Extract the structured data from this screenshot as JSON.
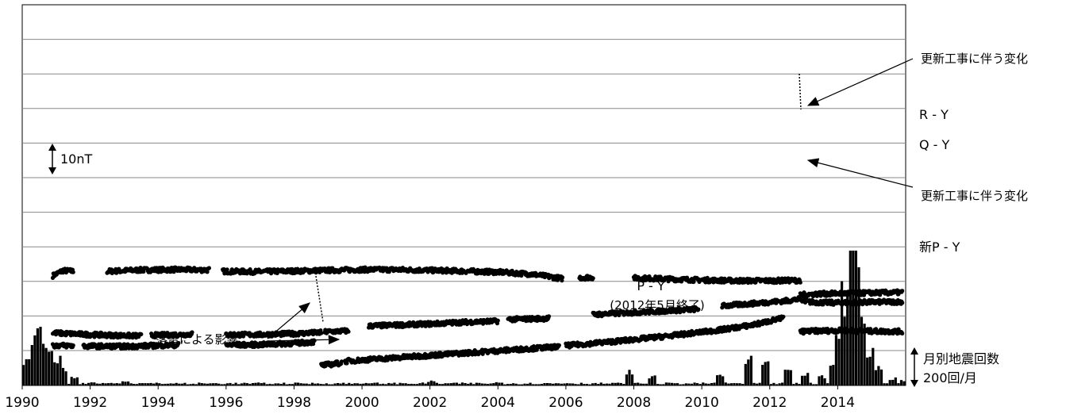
{
  "chart_data": {
    "type": "scatter",
    "x_tick_labels": [
      "1990",
      "1992",
      "1994",
      "1996",
      "1998",
      "2000",
      "2002",
      "2004",
      "2006",
      "2008",
      "2010",
      "2012",
      "2014"
    ],
    "xlim": [
      1990,
      2016
    ],
    "grid": true,
    "series": [
      {
        "name": "R - Y",
        "segments": [
          {
            "x": [
              1990.9,
              1991.2,
              1991.5
            ],
            "y": [
              63.5,
              66.5,
              66.0
            ]
          },
          {
            "x": [
              1992.5,
              1993.5,
              1994.5,
              1995.5
            ],
            "y": [
              66.0,
              66.8,
              67.0,
              66.8
            ]
          },
          {
            "x": [
              1995.9,
              1997.0,
              1998.5,
              2000.0,
              2001.0,
              2002.5,
              2004.0,
              2005.0,
              2005.9
            ],
            "y": [
              66.0,
              65.8,
              66.4,
              67.0,
              67.0,
              66.4,
              65.6,
              64.4,
              61.8
            ]
          },
          {
            "x": [
              2006.4,
              2006.8
            ],
            "y": [
              62.4,
              62.6
            ]
          },
          {
            "x": [
              2008.0,
              2009.0,
              2010.0,
              2011.0,
              2012.0,
              2012.9
            ],
            "y": [
              62.2,
              61.6,
              61.0,
              60.6,
              60.6,
              60.8
            ]
          },
          {
            "x": [
              2012.9,
              2013.5,
              2014.0,
              2014.5,
              2015.0,
              2015.9
            ],
            "y": [
              48.6,
              48.0,
              47.8,
              48.0,
              48.2,
              48.4
            ]
          }
        ]
      },
      {
        "name": "Q - Y",
        "segments": [
          {
            "x": [
              1990.9,
              1992.0,
              1993.5
            ],
            "y": [
              30.4,
              29.4,
              28.6
            ]
          },
          {
            "x": [
              1993.8,
              1995.0
            ],
            "y": [
              29.0,
              29.6
            ]
          },
          {
            "x": [
              1996.0,
              1997.0,
              1998.0,
              1998.8
            ],
            "y": [
              29.4,
              29.4,
              30.0,
              30.6
            ]
          },
          {
            "x": [
              1998.9,
              1999.6
            ],
            "y": [
              31.0,
              31.6
            ]
          },
          {
            "x": [
              2000.2,
              2002.0,
              2003.0,
              2004.0
            ],
            "y": [
              34.4,
              35.6,
              36.6,
              37.2
            ]
          },
          {
            "x": [
              2004.3,
              2005.5
            ],
            "y": [
              38.2,
              38.8
            ]
          },
          {
            "x": [
              2006.8,
              2008.0,
              2009.0,
              2009.9
            ],
            "y": [
              41.0,
              42.2,
              43.2,
              44.2
            ]
          },
          {
            "x": [
              2010.6,
              2011.5,
              2012.5,
              2012.9
            ],
            "y": [
              46.0,
              47.4,
              49.0,
              50.0
            ]
          },
          {
            "x": [
              2012.9,
              2013.5,
              2014.5,
              2015.9
            ],
            "y": [
              52.4,
              53.0,
              53.4,
              53.8
            ]
          }
        ]
      },
      {
        "name": "新P - Y",
        "segments": [
          {
            "x": [
              2012.9,
              2013.5,
              2014.2,
              2015.0,
              2015.9
            ],
            "y": [
              31.2,
              31.6,
              31.8,
              31.4,
              31.2
            ]
          }
        ]
      },
      {
        "name": "P - Y",
        "segments": [
          {
            "x": [
              1990.9,
              1991.5
            ],
            "y": [
              23.2,
              23.0
            ]
          },
          {
            "x": [
              1991.8,
              1993.0,
              1994.6
            ],
            "y": [
              22.8,
              22.6,
              23.4
            ]
          },
          {
            "x": [
              1996.0,
              1997.0,
              1998.0,
              1998.6
            ],
            "y": [
              23.4,
              23.6,
              24.4,
              25.2
            ]
          },
          {
            "x": [
              1998.8,
              1999.4
            ],
            "y": [
              11.6,
              13.0
            ]
          },
          {
            "x": [
              1999.5,
              2000.5,
              2002.0,
              2003.5,
              2005.0,
              2005.8
            ],
            "y": [
              14.0,
              15.4,
              17.4,
              19.4,
              21.4,
              22.4
            ]
          },
          {
            "x": [
              2006.0,
              2007.5,
              2009.0,
              2010.5,
              2011.5,
              2012.4
            ],
            "y": [
              23.0,
              25.6,
              28.6,
              32.0,
              35.0,
              39.0
            ]
          }
        ]
      }
    ],
    "earthquake_monthly": {
      "x": [
        1990.0,
        1990.2,
        1990.4,
        1990.6,
        1990.8,
        1991.0,
        1991.2,
        1991.5,
        1992.0,
        1993.0,
        1995.0,
        1997.5,
        2000.0,
        2002.0,
        2004.0,
        2006.0,
        2007.8,
        2008.5,
        2010.5,
        2011.3,
        2011.8,
        2012.5,
        2013.0,
        2013.5,
        2013.8,
        2014.0,
        2014.1,
        2014.2,
        2014.3,
        2014.4,
        2014.5,
        2014.7,
        2014.9,
        2015.2,
        2015.6,
        2015.9
      ],
      "y": [
        120,
        180,
        260,
        210,
        240,
        150,
        90,
        40,
        15,
        25,
        8,
        10,
        12,
        22,
        16,
        12,
        80,
        45,
        60,
        130,
        110,
        70,
        60,
        45,
        120,
        250,
        600,
        480,
        960,
        1470,
        800,
        400,
        170,
        90,
        40,
        30
      ]
    },
    "annotations": [
      "更新工事に伴う変化",
      "更新工事に伴う変化",
      "落雷による影響",
      "P - Y",
      "(2012年5月終了)"
    ],
    "scale_bar_top": "10nT",
    "scale_bar_bottom": [
      "月別地震回数",
      "200回/月"
    ]
  }
}
